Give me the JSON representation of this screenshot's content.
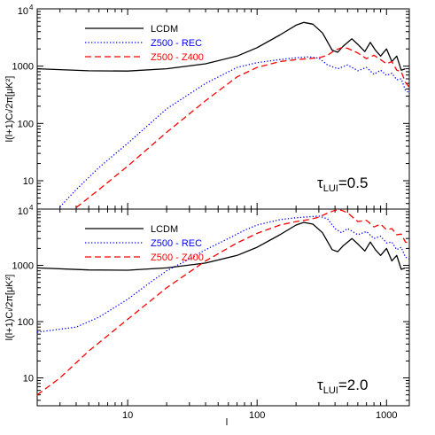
{
  "chart_data": [
    {
      "type": "line",
      "panel": "top",
      "xscale": "log",
      "yscale": "log",
      "xlim": [
        2,
        1500
      ],
      "ylim": [
        3.2,
        10000
      ],
      "x_ticks": [
        {
          "value": 10,
          "label": "10"
        },
        {
          "value": 100,
          "label": "100"
        },
        {
          "value": 1000,
          "label": "1000"
        }
      ],
      "y_ticks": [
        {
          "value": 10,
          "label": "10",
          "sup": ""
        },
        {
          "value": 100,
          "label": "100",
          "sup": ""
        },
        {
          "value": 1000,
          "label": "1000",
          "sup": ""
        },
        {
          "value": 10000,
          "label": "10",
          "sup": "4"
        }
      ],
      "ylabel": "l(l+1)Cₗ/2π[μK²]",
      "annotation": {
        "symbol": "τ",
        "sub": "LUI",
        "value": "=0.5"
      },
      "legend_position": "top-left",
      "series": [
        {
          "name": "LCDM",
          "color": "#000000",
          "dash": "solid",
          "x": [
            2,
            5,
            10,
            20,
            40,
            70,
            100,
            150,
            200,
            230,
            270,
            320,
            380,
            420,
            460,
            540,
            600,
            680,
            750,
            820,
            900,
            1000,
            1100,
            1200,
            1300,
            1400
          ],
          "y": [
            900,
            830,
            820,
            900,
            1100,
            1500,
            2100,
            3500,
            5200,
            5800,
            5400,
            3800,
            1900,
            1750,
            2200,
            3000,
            2400,
            1800,
            2600,
            1900,
            1500,
            2000,
            1200,
            1500,
            850,
            900
          ]
        },
        {
          "name": "Z500 - REC",
          "color": "#0000ff",
          "dash": "dotted",
          "x": [
            3,
            4,
            6,
            10,
            20,
            40,
            70,
            100,
            150,
            200,
            250,
            300,
            350,
            420,
            500,
            600,
            700,
            800,
            900,
            1000,
            1100,
            1200,
            1300,
            1400,
            1500
          ],
          "y": [
            3.5,
            7,
            17,
            45,
            180,
            500,
            950,
            1150,
            1300,
            1400,
            1450,
            1380,
            1050,
            900,
            1050,
            830,
            950,
            720,
            850,
            690,
            750,
            580,
            600,
            380,
            340
          ]
        },
        {
          "name": "Z500 - Z400",
          "color": "#ff0000",
          "dash": "dashed",
          "x": [
            4,
            6,
            10,
            20,
            40,
            70,
            100,
            150,
            200,
            250,
            300,
            350,
            400,
            450,
            500,
            600,
            700,
            800,
            900,
            1000,
            1100,
            1200,
            1300,
            1400,
            1500
          ],
          "y": [
            3.4,
            7,
            18,
            70,
            250,
            650,
            950,
            1200,
            1300,
            1350,
            1400,
            1550,
            1900,
            2100,
            2050,
            1700,
            1350,
            1550,
            1300,
            1100,
            1200,
            850,
            800,
            520,
            430
          ]
        }
      ]
    },
    {
      "type": "line",
      "panel": "bottom",
      "xscale": "log",
      "yscale": "log",
      "xlim": [
        2,
        1500
      ],
      "ylim": [
        3.2,
        10000
      ],
      "x_ticks": [
        {
          "value": 10,
          "label": "10"
        },
        {
          "value": 100,
          "label": "100"
        },
        {
          "value": 1000,
          "label": "1000"
        }
      ],
      "y_ticks": [
        {
          "value": 10,
          "label": "10",
          "sup": ""
        },
        {
          "value": 100,
          "label": "100",
          "sup": ""
        },
        {
          "value": 1000,
          "label": "1000",
          "sup": ""
        },
        {
          "value": 10000,
          "label": "10",
          "sup": "4"
        }
      ],
      "xlabel": "l",
      "ylabel": "l(l+1)Cₗ/2π[μK²]",
      "annotation": {
        "symbol": "τ",
        "sub": "LUI",
        "value": "=2.0"
      },
      "legend_position": "top-left",
      "series": [
        {
          "name": "LCDM",
          "color": "#000000",
          "dash": "solid",
          "x": [
            2,
            5,
            10,
            20,
            40,
            70,
            100,
            150,
            200,
            230,
            270,
            320,
            380,
            420,
            460,
            540,
            600,
            680,
            750,
            820,
            900,
            1000,
            1100,
            1200,
            1300,
            1400
          ],
          "y": [
            900,
            830,
            820,
            900,
            1100,
            1500,
            2100,
            3500,
            5200,
            5800,
            5400,
            3800,
            1900,
            1750,
            2200,
            3000,
            2400,
            1800,
            2600,
            1900,
            1500,
            2000,
            1200,
            1500,
            850,
            900
          ]
        },
        {
          "name": "Z500 - REC",
          "color": "#0000ff",
          "dash": "dotted",
          "x": [
            2,
            4,
            6,
            10,
            15,
            20,
            30,
            40,
            60,
            80,
            100,
            150,
            200,
            250,
            300,
            350,
            400,
            450,
            500,
            600,
            700,
            800,
            900,
            1000,
            1100,
            1200,
            1300,
            1400,
            1500
          ],
          "y": [
            65,
            80,
            120,
            250,
            500,
            800,
            1300,
            1900,
            3000,
            4200,
            5200,
            6500,
            7000,
            7300,
            7500,
            6700,
            4500,
            3800,
            4500,
            3500,
            4000,
            3000,
            3300,
            2500,
            2600,
            1900,
            2100,
            1400,
            1300
          ]
        },
        {
          "name": "Z500 - Z400",
          "color": "#ff0000",
          "dash": "dashed",
          "x": [
            2,
            3,
            5,
            10,
            20,
            40,
            70,
            100,
            150,
            200,
            250,
            300,
            350,
            400,
            450,
            500,
            600,
            700,
            800,
            900,
            1000,
            1100,
            1200,
            1300,
            1400,
            1500
          ],
          "y": [
            5,
            10,
            30,
            110,
            400,
            1200,
            2500,
            3700,
            5200,
            6000,
            6500,
            7200,
            8500,
            9500,
            9500,
            8600,
            6000,
            6300,
            4800,
            5400,
            4300,
            4500,
            3500,
            3600,
            2600,
            2500
          ]
        }
      ]
    }
  ]
}
